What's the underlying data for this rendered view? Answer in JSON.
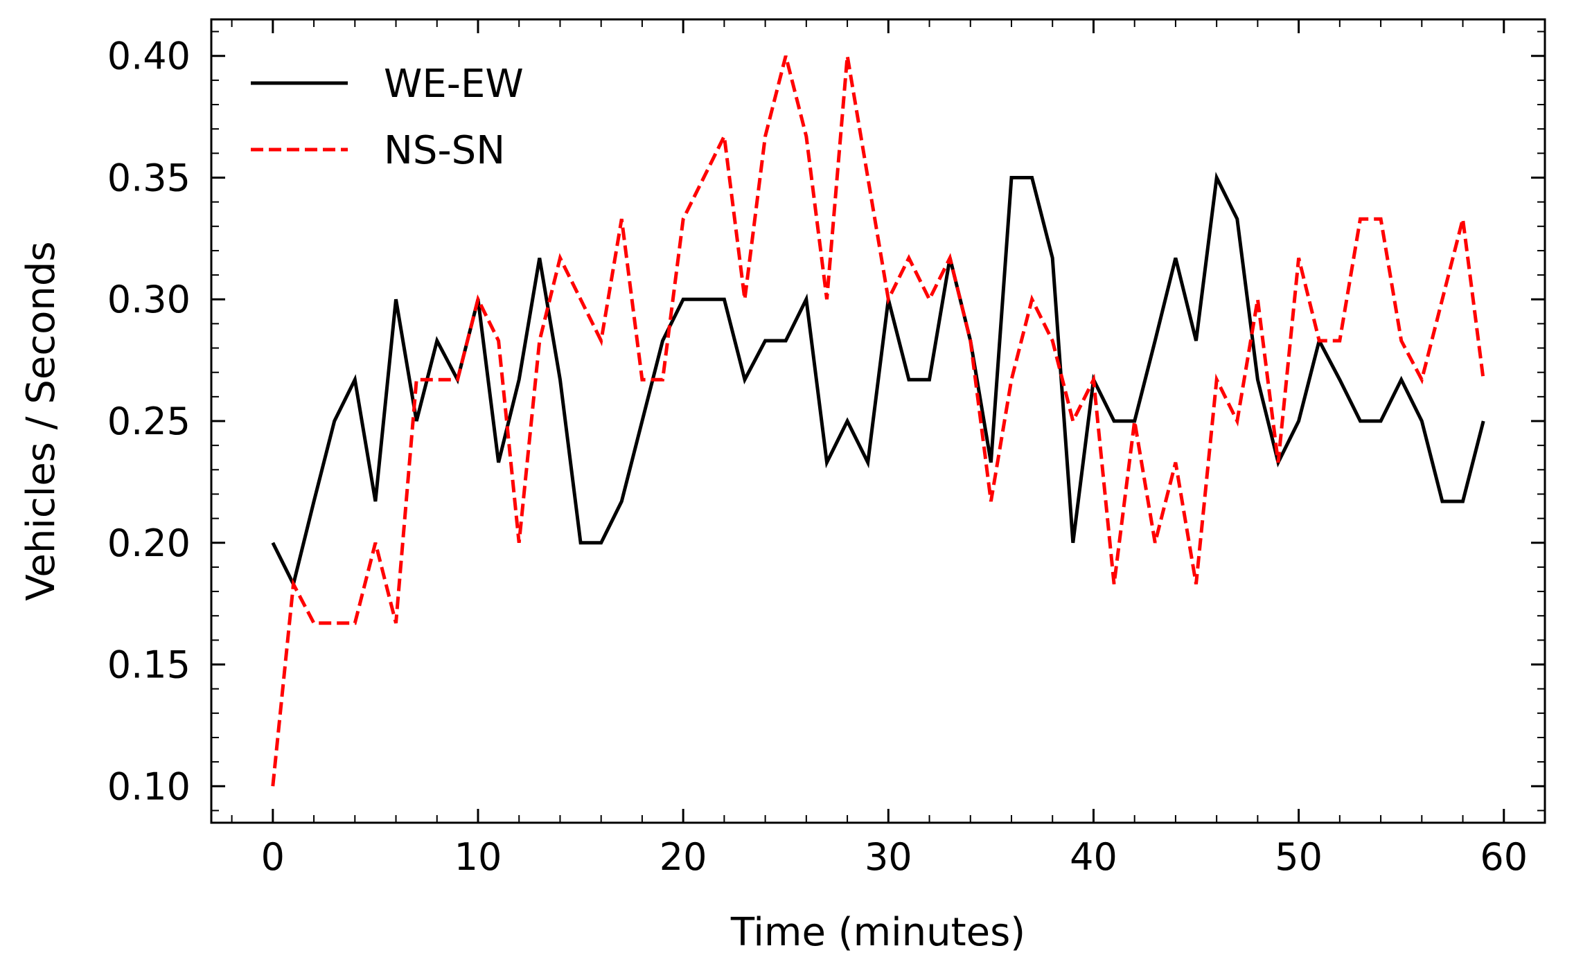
{
  "chart_data": {
    "type": "line",
    "title": "",
    "xlabel": "Time (minutes)",
    "ylabel": "Vehicles / Seconds",
    "xlim": [
      -3,
      62
    ],
    "ylim": [
      0.085,
      0.415
    ],
    "xticks": [
      0,
      10,
      20,
      30,
      40,
      50,
      60
    ],
    "xtick_labels": [
      "0",
      "10",
      "20",
      "30",
      "40",
      "50",
      "60"
    ],
    "yticks": [
      0.1,
      0.15,
      0.2,
      0.25,
      0.3,
      0.35,
      0.4
    ],
    "ytick_labels": [
      "0.10",
      "0.15",
      "0.20",
      "0.25",
      "0.30",
      "0.35",
      "0.40"
    ],
    "legend_position": "top-left",
    "grid": false,
    "x": [
      0,
      1,
      2,
      3,
      4,
      5,
      6,
      7,
      8,
      9,
      10,
      11,
      12,
      13,
      14,
      15,
      16,
      17,
      18,
      19,
      20,
      21,
      22,
      23,
      24,
      25,
      26,
      27,
      28,
      29,
      30,
      31,
      32,
      33,
      34,
      35,
      36,
      37,
      38,
      39,
      40,
      41,
      42,
      43,
      44,
      45,
      46,
      47,
      48,
      49,
      50,
      51,
      52,
      53,
      54,
      55,
      56,
      57,
      58,
      59
    ],
    "series": [
      {
        "name": "WE-EW",
        "color": "#000000",
        "style": "solid",
        "values": [
          0.2,
          0.183,
          0.217,
          0.25,
          0.267,
          0.217,
          0.3,
          0.25,
          0.283,
          0.267,
          0.3,
          0.233,
          0.267,
          0.317,
          0.267,
          0.2,
          0.2,
          0.217,
          0.25,
          0.283,
          0.3,
          0.3,
          0.3,
          0.267,
          0.283,
          0.283,
          0.3,
          0.233,
          0.25,
          0.233,
          0.3,
          0.267,
          0.267,
          0.317,
          0.283,
          0.233,
          0.35,
          0.35,
          0.317,
          0.2,
          0.267,
          0.25,
          0.25,
          0.283,
          0.317,
          0.283,
          0.35,
          0.333,
          0.267,
          0.233,
          0.25,
          0.283,
          0.267,
          0.25,
          0.25,
          0.267,
          0.25,
          0.217,
          0.217,
          0.25
        ]
      },
      {
        "name": "NS-SN",
        "color": "#ff0000",
        "style": "dashed",
        "values": [
          0.1,
          0.183,
          0.167,
          0.167,
          0.167,
          0.2,
          0.167,
          0.267,
          0.267,
          0.267,
          0.3,
          0.283,
          0.2,
          0.283,
          0.317,
          0.3,
          0.283,
          0.333,
          0.267,
          0.267,
          0.333,
          0.35,
          0.367,
          0.3,
          0.367,
          0.4,
          0.367,
          0.3,
          0.4,
          0.35,
          0.3,
          0.317,
          0.3,
          0.317,
          0.283,
          0.217,
          0.267,
          0.3,
          0.283,
          0.25,
          0.267,
          0.183,
          0.25,
          0.2,
          0.233,
          0.183,
          0.267,
          0.25,
          0.3,
          0.233,
          0.317,
          0.283,
          0.283,
          0.333,
          0.333,
          0.283,
          0.267,
          0.3,
          0.333,
          0.267
        ]
      }
    ]
  }
}
